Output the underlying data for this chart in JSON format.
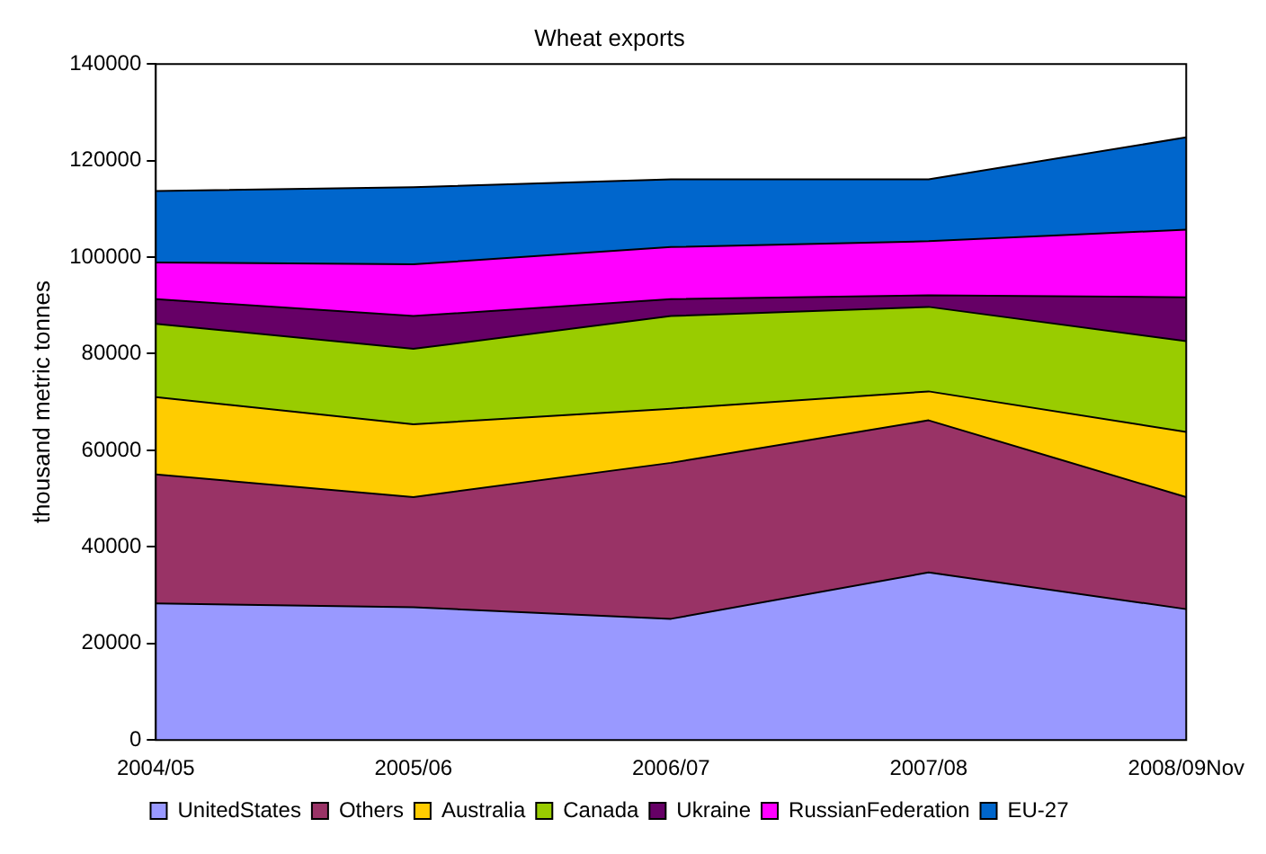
{
  "chart_data": {
    "type": "area",
    "title": "Wheat exports",
    "ylabel": "thousand metric tonnes",
    "categories": [
      "2004/05",
      "2005/06",
      "2006/07",
      "2007/08",
      "2008/09Nov"
    ],
    "stacked": true,
    "ylim": [
      0,
      140000
    ],
    "yticks": [
      0,
      20000,
      40000,
      60000,
      80000,
      100000,
      120000,
      140000
    ],
    "grid": false,
    "legend": "bottom",
    "series": [
      {
        "name": "UnitedStates",
        "color": "#9999ff",
        "values": [
          28300,
          27500,
          25100,
          34700,
          27100
        ]
      },
      {
        "name": "Others",
        "color": "#993366",
        "values": [
          26700,
          22800,
          32300,
          31500,
          23200
        ]
      },
      {
        "name": "Australia",
        "color": "#ffcc00",
        "values": [
          16000,
          15100,
          11200,
          6000,
          13500
        ]
      },
      {
        "name": "Canada",
        "color": "#99cc00",
        "values": [
          15200,
          15600,
          19200,
          17500,
          18800
        ]
      },
      {
        "name": "Ukraine",
        "color": "#660066",
        "values": [
          5100,
          6800,
          3500,
          2400,
          9100
        ]
      },
      {
        "name": "RussianFederation",
        "color": "#ff00ff",
        "values": [
          7600,
          10700,
          10800,
          11200,
          14000
        ]
      },
      {
        "name": "EU-27",
        "color": "#0066cc",
        "values": [
          14800,
          16000,
          14000,
          12800,
          19100
        ]
      }
    ]
  }
}
